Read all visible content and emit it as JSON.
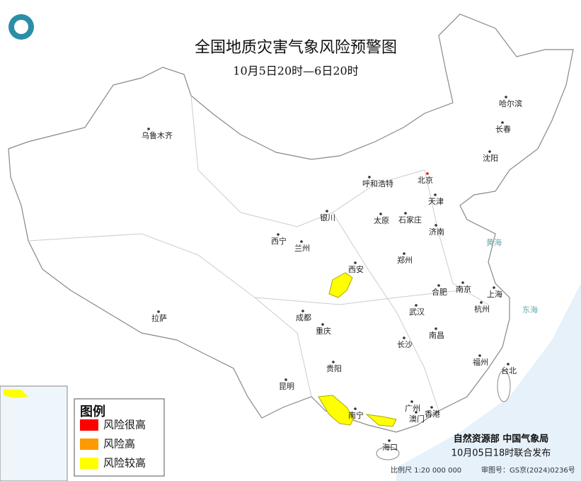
{
  "title": "全国地质灾害气象风险预警图",
  "subtitle": "10月5日20时—6日20时",
  "cities": [
    "乌鲁木齐",
    "哈尔滨",
    "长春",
    "沈阳",
    "北京",
    "天津",
    "呼和浩特",
    "石家庄",
    "太原",
    "济南",
    "银川",
    "西宁",
    "兰州",
    "郑州",
    "西安",
    "合肥",
    "南京",
    "上海",
    "杭州",
    "武汉",
    "成都",
    "拉萨",
    "重庆",
    "长沙",
    "南昌",
    "福州",
    "台北",
    "贵阳",
    "昆明",
    "南宁",
    "广州",
    "澳门",
    "香港",
    "海口"
  ],
  "seas": [
    "黄海",
    "东海"
  ],
  "legend": {
    "title": "图例",
    "items": [
      {
        "label": "风险很高",
        "color": "#ff0000"
      },
      {
        "label": "风险高",
        "color": "#ff9900"
      },
      {
        "label": "风险较高",
        "color": "#ffff00"
      }
    ]
  },
  "issuer": "自然资源部 中国气象局",
  "issued": "10月05日18时联合发布",
  "scale": "比例尺 1:20 000 000",
  "review": "审图号：GS京(2024)0236号"
}
